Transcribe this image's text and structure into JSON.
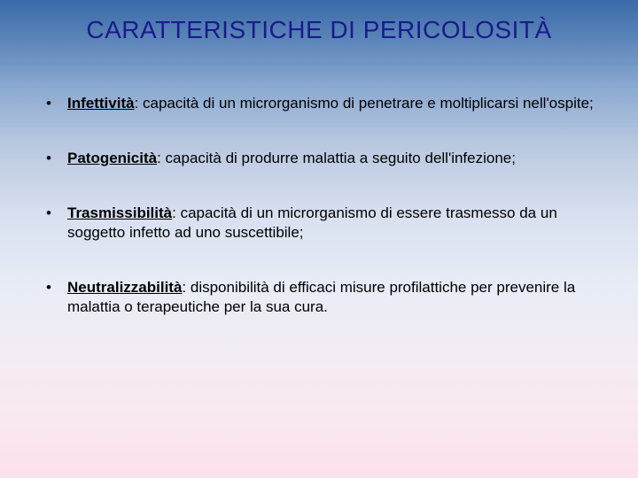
{
  "title": {
    "text": "CARATTERISTICHE DI PERICOLOSITÀ",
    "color": "#1a1a8a",
    "fontsize": 28
  },
  "body": {
    "text_color": "#000000",
    "fontsize": 17,
    "line_height": 1.3,
    "bullet_color": "#000000"
  },
  "items": [
    {
      "term": "Infettività",
      "rest": ": capacità di un microrganismo di penetrare e moltiplicarsi nell'ospite;"
    },
    {
      "term": "Patogenicità",
      "rest": ": capacità di produrre malattia a seguito dell'infezione;"
    },
    {
      "term": "Trasmissibilità",
      "rest": ": capacità di un microrganismo di essere trasmesso da un soggetto infetto ad uno suscettibile;"
    },
    {
      "term": "Neutralizzabilità",
      "rest": ": disponibilità di efficaci misure profilattiche per prevenire la malattia o terapeutiche per la sua cura."
    }
  ]
}
